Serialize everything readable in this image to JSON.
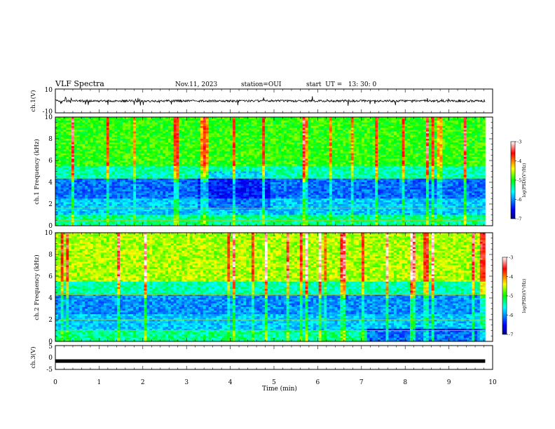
{
  "header": {
    "title": "VLF Spectra",
    "date": "Nov.11, 2023",
    "station": "station=OUI",
    "start": "start  UT =   13: 30: 0"
  },
  "chart_data": [
    {
      "type": "line",
      "panel": "ch1-waveform",
      "ylabel": "ch.1(V)",
      "ylim": [
        -10,
        10
      ],
      "y_ticks": [
        "10",
        "-10"
      ],
      "xlim": [
        0,
        10
      ],
      "baseline_value": 0,
      "color": "#000000"
    },
    {
      "type": "heatmap",
      "panel": "ch1-spectrogram",
      "ylabel": "ch.1 Frequency (kHz)",
      "ylim": [
        0,
        10
      ],
      "y_ticks": [
        "0",
        "2",
        "4",
        "6",
        "8",
        "10"
      ],
      "xlim": [
        0,
        10
      ],
      "data_end_min": 9.83,
      "colorbar": {
        "label": "log(PSD)(V²/Hz)",
        "range": [
          -7,
          -3
        ],
        "ticks": [
          "-3",
          "-4",
          "-5",
          "-6",
          "-7"
        ]
      }
    },
    {
      "type": "heatmap",
      "panel": "ch2-spectrogram",
      "ylabel": "ch.2 Frequency (kHz)",
      "ylim": [
        0,
        10
      ],
      "y_ticks": [
        "0",
        "2",
        "4",
        "6",
        "8",
        "10"
      ],
      "xlim": [
        0,
        10
      ],
      "data_end_min": 9.83,
      "colorbar": {
        "label": "log(PSD)(V²/Hz)",
        "range": [
          -7,
          -3
        ],
        "ticks": [
          "-3",
          "-4",
          "-5",
          "-6",
          "-7"
        ]
      }
    },
    {
      "type": "line",
      "panel": "ch3-waveform",
      "ylabel": "ch.3(V)",
      "ylim": [
        -5,
        5
      ],
      "y_ticks": [
        "5",
        "0",
        "-5"
      ],
      "xlim": [
        0,
        10
      ],
      "baseline_value": -1.5,
      "color": "#000000"
    }
  ],
  "x_axis": {
    "label": "Time (min)",
    "ticks": [
      "0",
      "1",
      "2",
      "3",
      "4",
      "5",
      "6",
      "7",
      "8",
      "9",
      "10"
    ]
  }
}
